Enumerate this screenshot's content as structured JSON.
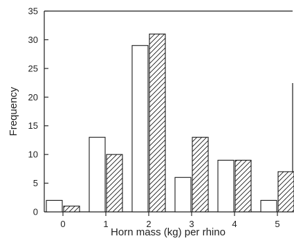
{
  "chart_data": {
    "type": "bar",
    "title": "",
    "xlabel": "Horn mass (kg) per rhino",
    "ylabel": "Frequency",
    "categories": [
      "0",
      "1",
      "2",
      "3",
      "4",
      "5"
    ],
    "series": [
      {
        "pattern": "open",
        "values": [
          2,
          13,
          29,
          6,
          9,
          2
        ]
      },
      {
        "pattern": "hatched",
        "values": [
          1,
          10,
          31,
          13,
          9,
          7
        ]
      }
    ],
    "yticks": [
      0,
      5,
      10,
      15,
      20,
      25,
      30,
      35
    ],
    "ylim": [
      0,
      35
    ],
    "grid": false,
    "legend": "none",
    "colors": {
      "stroke": "#1a1a1a",
      "open_fill": "#ffffff",
      "hatch": "#1a1a1a"
    }
  }
}
